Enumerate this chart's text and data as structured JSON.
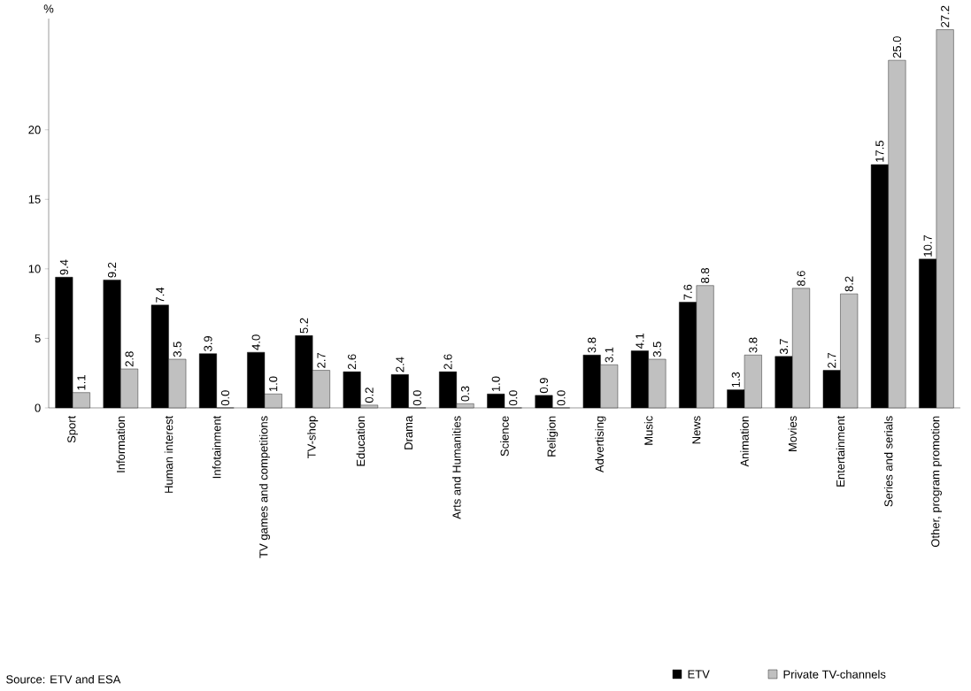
{
  "chart_data": {
    "type": "bar",
    "ylabel": "%",
    "categories": [
      "Sport",
      "Information",
      "Human interest",
      "Infotainment",
      "TV games and competitions",
      "TV-shop",
      "Education",
      "Drama",
      "Arts and Humanities",
      "Science",
      "Religion",
      "Advertising",
      "Music",
      "News",
      "Animation",
      "Movies",
      "Entertainment",
      "Series and serials",
      "Other, program promotion"
    ],
    "series": [
      {
        "name": "ETV",
        "color": "#000000",
        "values": [
          9.4,
          9.2,
          7.4,
          3.9,
          4.0,
          5.2,
          2.6,
          2.4,
          2.6,
          1.0,
          0.9,
          3.8,
          4.1,
          7.6,
          1.3,
          3.7,
          2.7,
          17.5,
          10.7
        ],
        "value_labels": [
          "9.4",
          "9.2",
          "7.4",
          "3.9",
          "4.0",
          "5.2",
          "2.6",
          "2.4",
          "2.6",
          "1.0",
          "0.9",
          "3.8",
          "4.1",
          "7.6",
          "1.3",
          "3.7",
          "2.7",
          "17.5",
          "10.7"
        ]
      },
      {
        "name": "Private TV-channels",
        "color": "#c0c0c0",
        "values": [
          1.1,
          2.8,
          3.5,
          0.0,
          1.0,
          2.7,
          0.2,
          0.0,
          0.3,
          0.0,
          0.0,
          3.1,
          3.5,
          8.8,
          3.8,
          8.6,
          8.2,
          25.0,
          27.2
        ],
        "value_labels": [
          "1.1",
          "2.8",
          "3.5",
          "0.0",
          "1.0",
          "2.7",
          "0.2",
          "0.0",
          "0.3",
          "0.0",
          "0.0",
          "3.1",
          "3.5",
          "8.8",
          "3.8",
          "8.6",
          "8.2",
          "25.0",
          "27.2"
        ]
      }
    ],
    "ylim": [
      0,
      28
    ],
    "yticks": [
      0,
      5,
      10,
      15,
      20
    ],
    "legend": "bottom right",
    "grid": false,
    "annotations": [
      "Source: ETV and ESA"
    ]
  }
}
